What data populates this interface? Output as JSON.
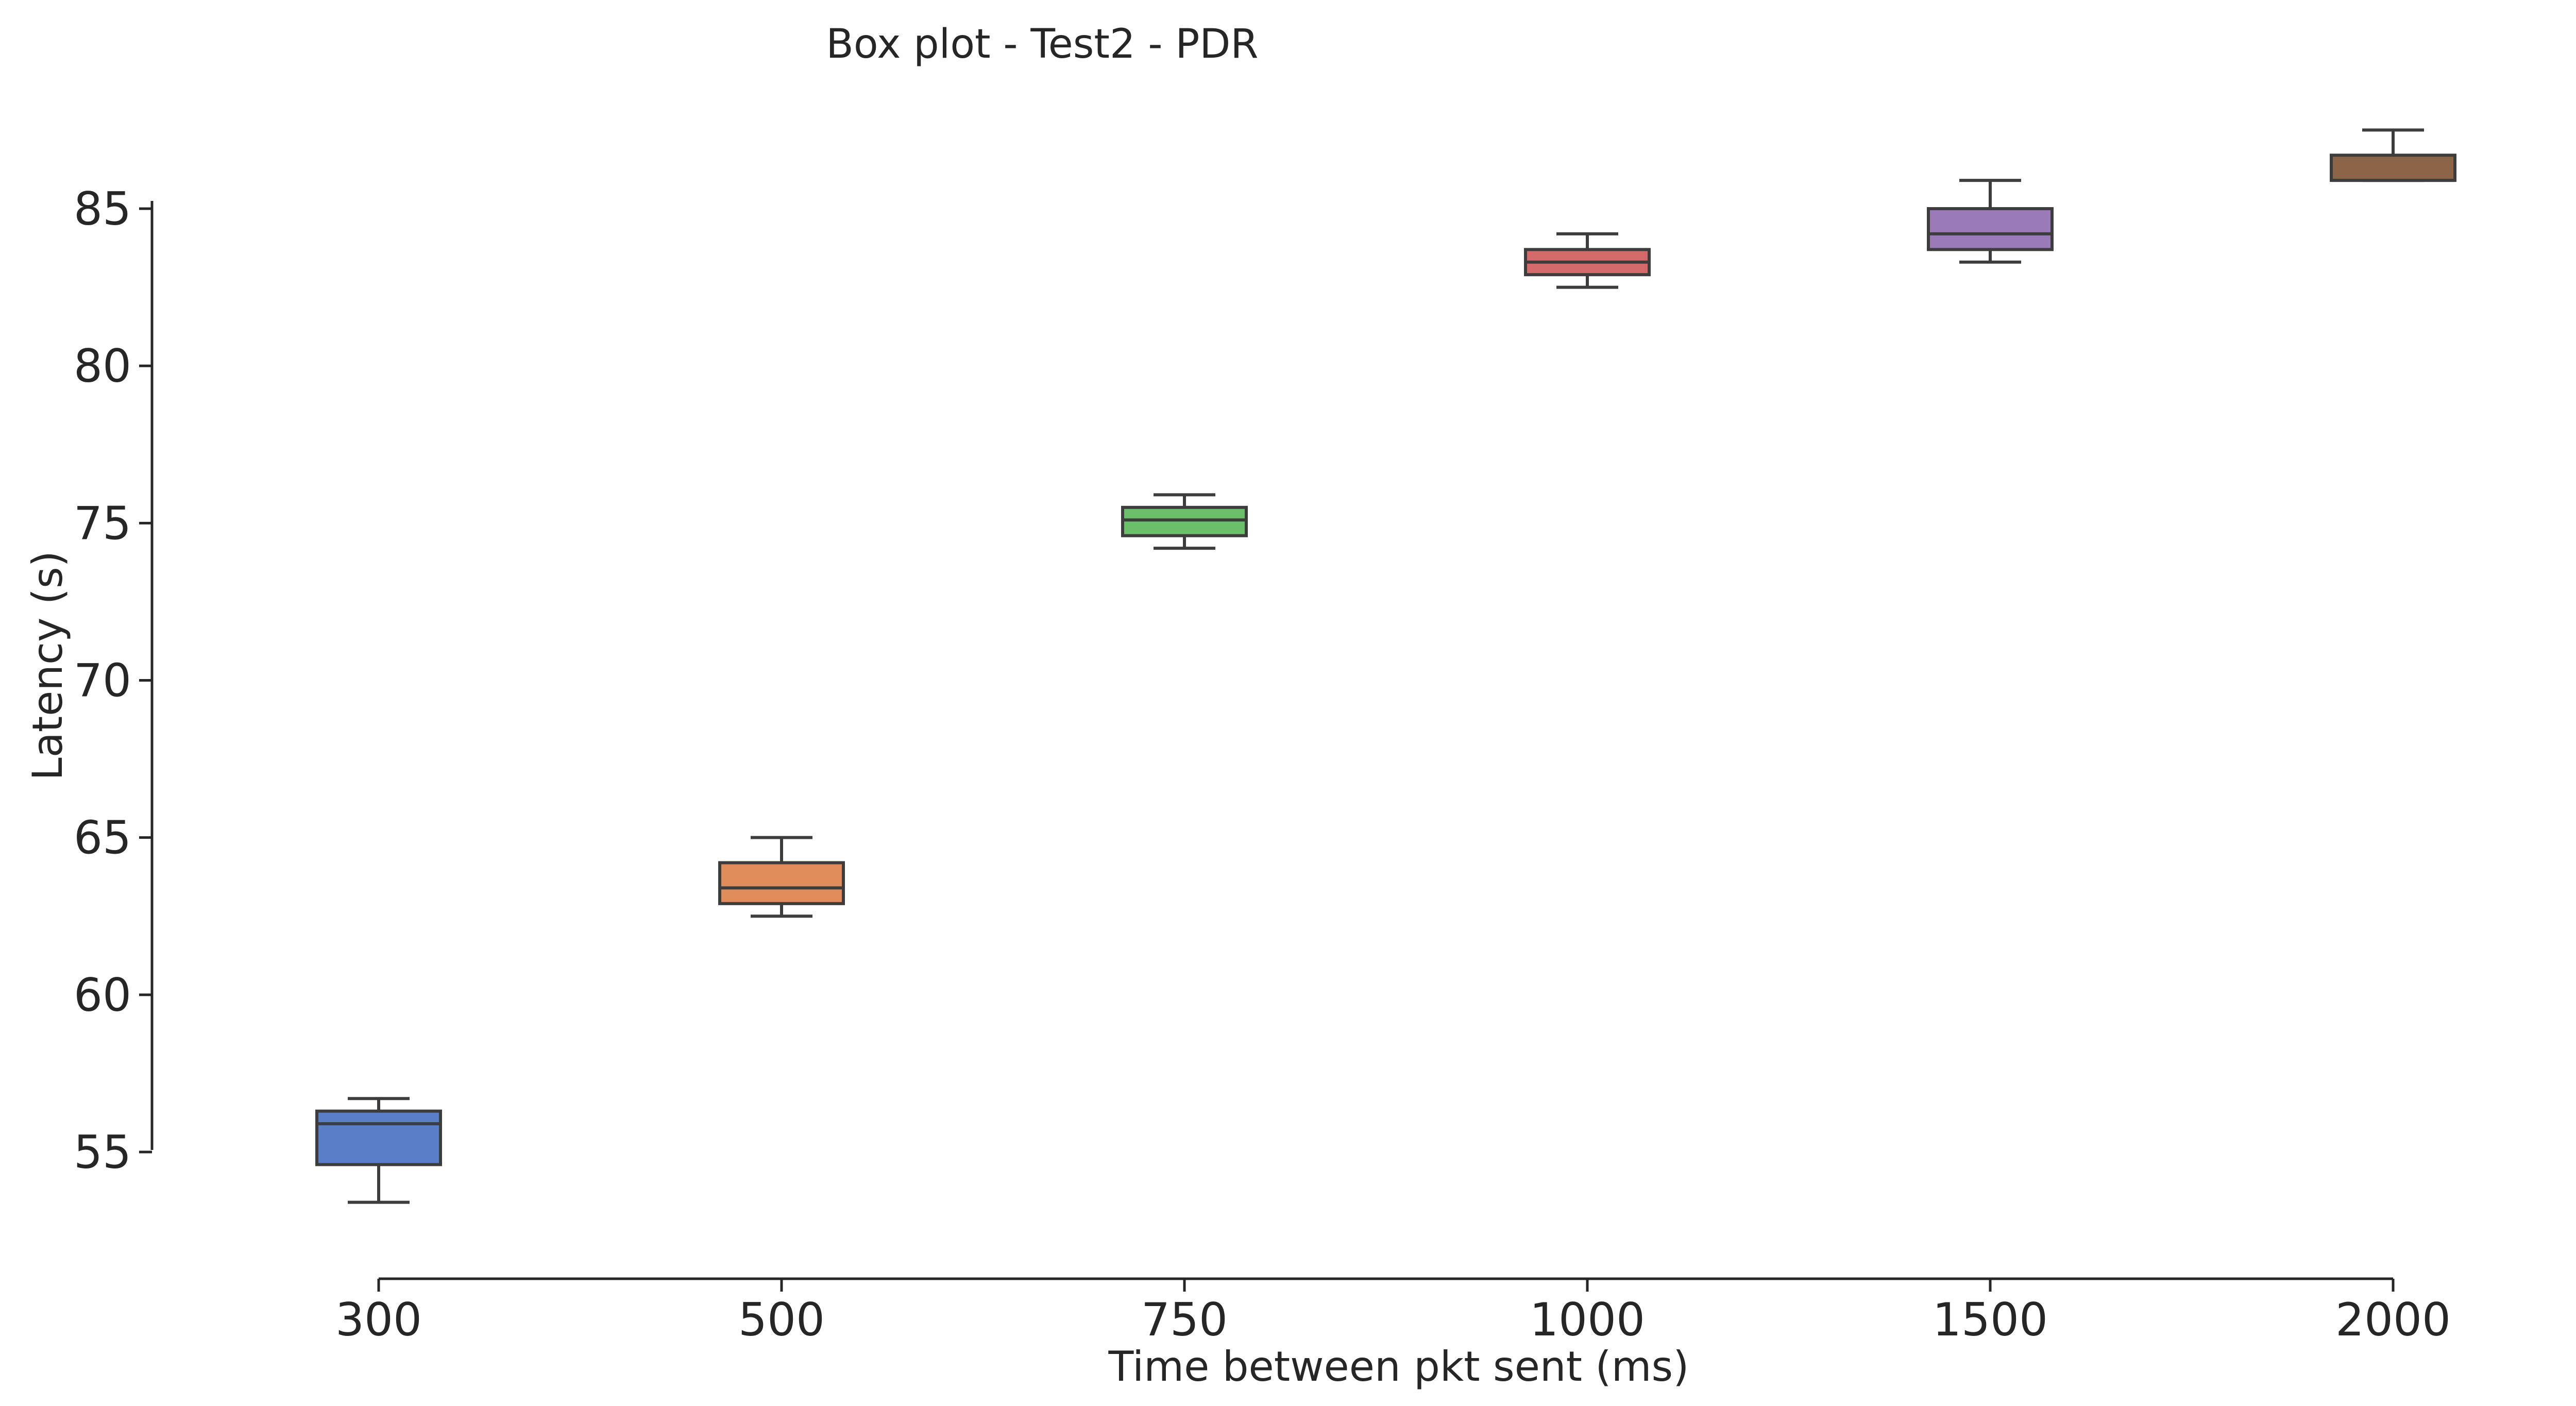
{
  "chart_data": {
    "type": "boxplot",
    "title": "Box plot - Test2 - PDR",
    "xlabel": "Time between pkt sent (ms)",
    "ylabel": "Latency (s)",
    "categories": [
      "300",
      "500",
      "750",
      "1000",
      "1500",
      "2000"
    ],
    "yticks": [
      55,
      60,
      65,
      70,
      75,
      80,
      85
    ],
    "ylim": [
      51,
      88.5
    ],
    "grid": false,
    "legend": "none",
    "boxes": [
      {
        "category": "300",
        "min": 53.4,
        "q1": 54.6,
        "median": 55.9,
        "q3": 56.3,
        "max": 56.7,
        "color": "#5b7fc7"
      },
      {
        "category": "500",
        "min": 62.5,
        "q1": 62.9,
        "median": 63.4,
        "q3": 64.2,
        "max": 65.0,
        "color": "#e08b5a"
      },
      {
        "category": "750",
        "min": 74.2,
        "q1": 74.6,
        "median": 75.1,
        "q3": 75.5,
        "max": 75.9,
        "color": "#6bbf6a"
      },
      {
        "category": "1000",
        "min": 82.5,
        "q1": 82.9,
        "median": 83.3,
        "q3": 83.7,
        "max": 84.2,
        "color": "#d46a6a"
      },
      {
        "category": "1500",
        "min": 83.3,
        "q1": 83.7,
        "median": 84.2,
        "q3": 85.0,
        "max": 85.9,
        "color": "#9a7ab8"
      },
      {
        "category": "2000",
        "min": 85.9,
        "q1": 85.9,
        "median": 85.9,
        "q3": 86.7,
        "max": 87.5,
        "color": "#8c6448"
      }
    ]
  }
}
